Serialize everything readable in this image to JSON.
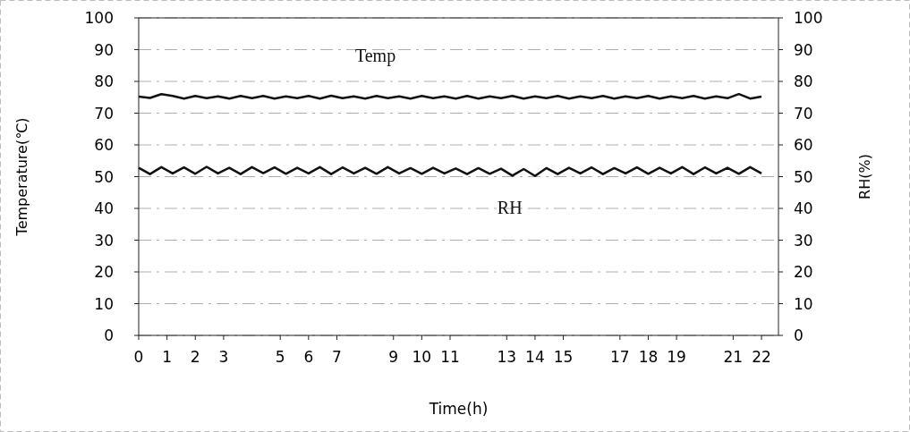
{
  "chart_data": {
    "type": "line",
    "xlabel": "Time(h)",
    "ylabel": "Temperature(℃)",
    "y2label": "RH(%)",
    "xlim": [
      0,
      22.6
    ],
    "xticks": [
      0,
      1,
      2,
      3,
      5,
      6,
      7,
      9,
      10,
      11,
      13,
      14,
      15,
      17,
      18,
      19,
      21,
      22
    ],
    "ylim": [
      0,
      100
    ],
    "yticks": [
      0,
      10,
      20,
      30,
      40,
      50,
      60,
      70,
      80,
      90,
      100
    ],
    "y2lim": [
      0,
      100
    ],
    "y2ticks": [
      0,
      10,
      20,
      30,
      40,
      50,
      60,
      70,
      80,
      90,
      100
    ],
    "grid": "y",
    "line_style": "solid",
    "marker": "none",
    "x": [
      0,
      0.4,
      0.8,
      1.2,
      1.6,
      2,
      2.4,
      2.8,
      3.2,
      3.6,
      4,
      4.4,
      4.8,
      5.2,
      5.6,
      6,
      6.4,
      6.8,
      7.2,
      7.6,
      8,
      8.4,
      8.8,
      9.2,
      9.6,
      10,
      10.4,
      10.8,
      11.2,
      11.6,
      12,
      12.4,
      12.8,
      13.2,
      13.6,
      14,
      14.4,
      14.8,
      15.2,
      15.6,
      16,
      16.4,
      16.8,
      17.2,
      17.6,
      18,
      18.4,
      18.8,
      19.2,
      19.6,
      20,
      20.4,
      20.8,
      21.2,
      21.6,
      22
    ],
    "series": [
      {
        "name": "Temp",
        "color": "#111111",
        "values": [
          75.2,
          74.8,
          76,
          75.4,
          74.6,
          75.4,
          74.7,
          75.3,
          74.6,
          75.4,
          74.7,
          75.4,
          74.6,
          75.3,
          74.7,
          75.4,
          74.6,
          75.5,
          74.7,
          75.3,
          74.6,
          75.4,
          74.7,
          75.3,
          74.6,
          75.4,
          74.7,
          75.3,
          74.6,
          75.4,
          74.6,
          75.3,
          74.7,
          75.4,
          74.6,
          75.3,
          74.7,
          75.4,
          74.6,
          75.3,
          74.7,
          75.4,
          74.6,
          75.3,
          74.7,
          75.4,
          74.6,
          75.3,
          74.7,
          75.4,
          74.6,
          75.3,
          74.7,
          76,
          74.6,
          75.2
        ]
      },
      {
        "name": "RH",
        "color": "#111111",
        "values": [
          52.8,
          50.8,
          53,
          51,
          52.9,
          50.9,
          53.1,
          51,
          52.8,
          50.8,
          53,
          51.1,
          52.9,
          50.9,
          52.8,
          51,
          53,
          50.8,
          52.9,
          51,
          52.8,
          50.9,
          53,
          51,
          52.7,
          50.9,
          52.8,
          51,
          52.6,
          50.8,
          52.7,
          50.9,
          52.5,
          50.3,
          52.4,
          50.2,
          52.7,
          50.8,
          52.8,
          51,
          52.9,
          50.8,
          52.7,
          51,
          52.9,
          50.9,
          52.8,
          51,
          53,
          50.8,
          52.9,
          51,
          52.8,
          50.9,
          53,
          51
        ]
      }
    ]
  }
}
